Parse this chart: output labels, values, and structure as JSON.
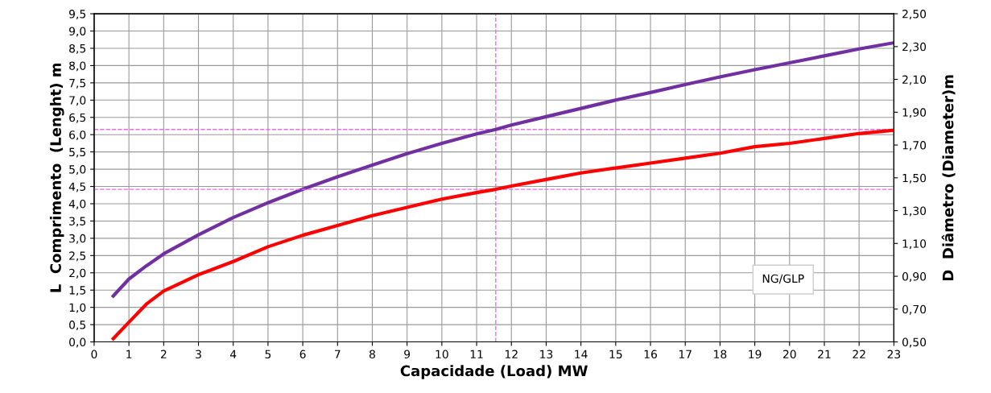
{
  "chart_data": {
    "type": "line",
    "xlabel": "Capacidade (Load) MW",
    "ylabel": "L  Comprimento  (Lenght) m",
    "y2label": "D  Diâmetro (Diameter)m",
    "xlim": [
      0,
      23
    ],
    "xticks": [
      0,
      1,
      2,
      3,
      4,
      5,
      6,
      7,
      8,
      9,
      10,
      11,
      12,
      13,
      14,
      15,
      16,
      17,
      18,
      19,
      20,
      21,
      22,
      23
    ],
    "ylim": [
      0,
      9.5
    ],
    "yticks": [
      {
        "value": 0,
        "label": "0,0"
      },
      {
        "value": 0.5,
        "label": "0,5"
      },
      {
        "value": 1,
        "label": "1,0"
      },
      {
        "value": 1.5,
        "label": "1,5"
      },
      {
        "value": 2,
        "label": "2,0"
      },
      {
        "value": 2.5,
        "label": "2,5"
      },
      {
        "value": 3,
        "label": "3,0"
      },
      {
        "value": 3.5,
        "label": "3,5"
      },
      {
        "value": 4,
        "label": "4,0"
      },
      {
        "value": 4.5,
        "label": "4,5"
      },
      {
        "value": 5,
        "label": "5,0"
      },
      {
        "value": 5.5,
        "label": "5,5"
      },
      {
        "value": 6,
        "label": "6,0"
      },
      {
        "value": 6.5,
        "label": "6,5"
      },
      {
        "value": 7,
        "label": "7,0"
      },
      {
        "value": 7.5,
        "label": "7,5"
      },
      {
        "value": 8,
        "label": "8,0"
      },
      {
        "value": 8.5,
        "label": "8,5"
      },
      {
        "value": 9,
        "label": "9,0"
      },
      {
        "value": 9.5,
        "label": "9,5"
      }
    ],
    "y2lim": [
      0.5,
      2.5
    ],
    "y2ticks": [
      {
        "value": 0.5,
        "label": "0,50"
      },
      {
        "value": 0.7,
        "label": "0,70"
      },
      {
        "value": 0.9,
        "label": "0,90"
      },
      {
        "value": 1.1,
        "label": "1,10"
      },
      {
        "value": 1.3,
        "label": "1,30"
      },
      {
        "value": 1.5,
        "label": "1,50"
      },
      {
        "value": 1.7,
        "label": "1,70"
      },
      {
        "value": 1.9,
        "label": "1,90"
      },
      {
        "value": 2.1,
        "label": "2,10"
      },
      {
        "value": 2.3,
        "label": "2,30"
      },
      {
        "value": 2.5,
        "label": "2,50"
      }
    ],
    "x": [
      0.55,
      1,
      1.5,
      2,
      3,
      4,
      5,
      6,
      7,
      8,
      9,
      10,
      11,
      11.55,
      12,
      13,
      14,
      15,
      16,
      17,
      18,
      19,
      20,
      21,
      22,
      23
    ],
    "series": [
      {
        "color": "#7030a0",
        "values": [
          1.33,
          1.82,
          2.2,
          2.55,
          3.1,
          3.6,
          4.03,
          4.42,
          4.78,
          5.12,
          5.45,
          5.75,
          6.02,
          6.15,
          6.28,
          6.52,
          6.76,
          7.0,
          7.22,
          7.45,
          7.67,
          7.88,
          8.08,
          8.28,
          8.48,
          8.66
        ]
      },
      {
        "color": "#ff0000",
        "axis": "y2",
        "values": [
          0.52,
          0.62,
          0.73,
          0.81,
          0.91,
          0.99,
          1.08,
          1.15,
          1.21,
          1.27,
          1.32,
          1.37,
          1.41,
          1.43,
          1.45,
          1.49,
          1.53,
          1.56,
          1.59,
          1.62,
          1.65,
          1.69,
          1.71,
          1.74,
          1.77,
          1.79
        ]
      }
    ],
    "ref_lines": [
      {
        "axis": "x",
        "value": 11.55,
        "color": "#ee66ee",
        "line_style": "dashed"
      },
      {
        "axis": "y",
        "value": 6.15,
        "color": "#ee66ee",
        "line_style": "dashed"
      },
      {
        "axis": "y2",
        "value": 1.43,
        "color": "#ee66ee",
        "line_style": "dashed"
      }
    ],
    "annotations": [
      "NG/GLP"
    ],
    "grid": true,
    "line_style": "solid",
    "marker": "none"
  }
}
